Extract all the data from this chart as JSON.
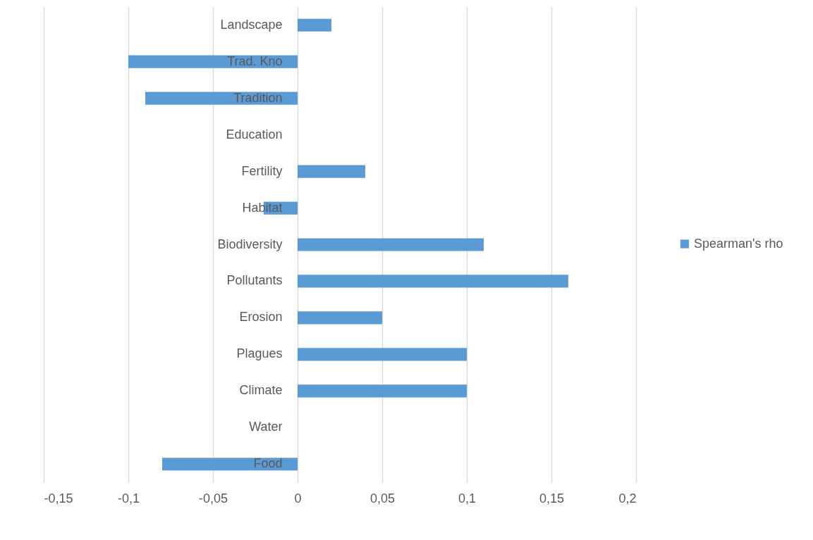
{
  "chart_data": {
    "type": "bar",
    "orientation": "horizontal",
    "categories": [
      "Landscape",
      "Trad. Kno",
      "Tradition",
      "Education",
      "Fertility",
      "Habitat",
      "Biodiversity",
      "Pollutants",
      "Erosion",
      "Plagues",
      "Climate",
      "Water",
      "Food"
    ],
    "series": [
      {
        "name": "Spearman's rho",
        "color": "#5b9bd5",
        "values": [
          0.02,
          -0.1,
          -0.09,
          0,
          0.04,
          -0.02,
          0.11,
          0.16,
          0.05,
          0.1,
          0.1,
          0,
          -0.08
        ]
      }
    ],
    "xlim": [
      -0.15,
      0.2
    ],
    "xticks": [
      {
        "value": -0.15,
        "label": "-0,15"
      },
      {
        "value": -0.1,
        "label": "-0,1"
      },
      {
        "value": -0.05,
        "label": "-0,05"
      },
      0,
      {
        "value": 0.05,
        "label": "0,05"
      },
      {
        "value": 0.1,
        "label": "0,1"
      },
      {
        "value": 0.15,
        "label": "0,15"
      },
      {
        "value": 0.2,
        "label": "0,2"
      }
    ],
    "grid": "x",
    "legend": "right"
  }
}
